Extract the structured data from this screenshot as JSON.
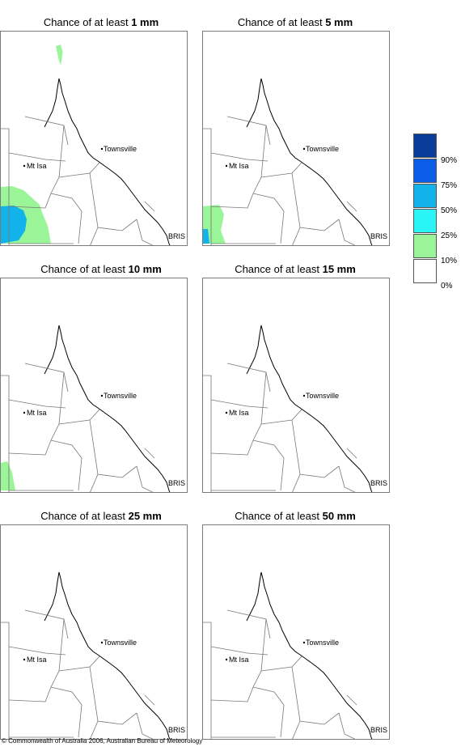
{
  "panels": [
    {
      "title_prefix": "Chance of at least ",
      "threshold": "1 mm",
      "shading": "large"
    },
    {
      "title_prefix": "Chance of at least ",
      "threshold": "5 mm",
      "shading": "medium"
    },
    {
      "title_prefix": "Chance of at least ",
      "threshold": "10 mm",
      "shading": "small"
    },
    {
      "title_prefix": "Chance of at least ",
      "threshold": "15 mm",
      "shading": "none"
    },
    {
      "title_prefix": "Chance of at least ",
      "threshold": "25 mm",
      "shading": "none"
    },
    {
      "title_prefix": "Chance of at least ",
      "threshold": "50 mm",
      "shading": "none"
    }
  ],
  "map_labels": {
    "townsville": "Townsville",
    "mt_isa": "Mt Isa",
    "brisbane": "BRIS"
  },
  "legend": {
    "entries": [
      {
        "label": "",
        "color": "#0a3d99"
      },
      {
        "label": "90%",
        "color": "#0a5de8"
      },
      {
        "label": "75%",
        "color": "#12b2ea"
      },
      {
        "label": "50%",
        "color": "#2af5f5"
      },
      {
        "label": "25%",
        "color": "#9af598"
      },
      {
        "label": "10%",
        "color": "#ffffff"
      }
    ],
    "bottom_label": "0%"
  },
  "copyright": "© Commonwealth of Australia 2006, Australian Bureau of Meteorology"
}
